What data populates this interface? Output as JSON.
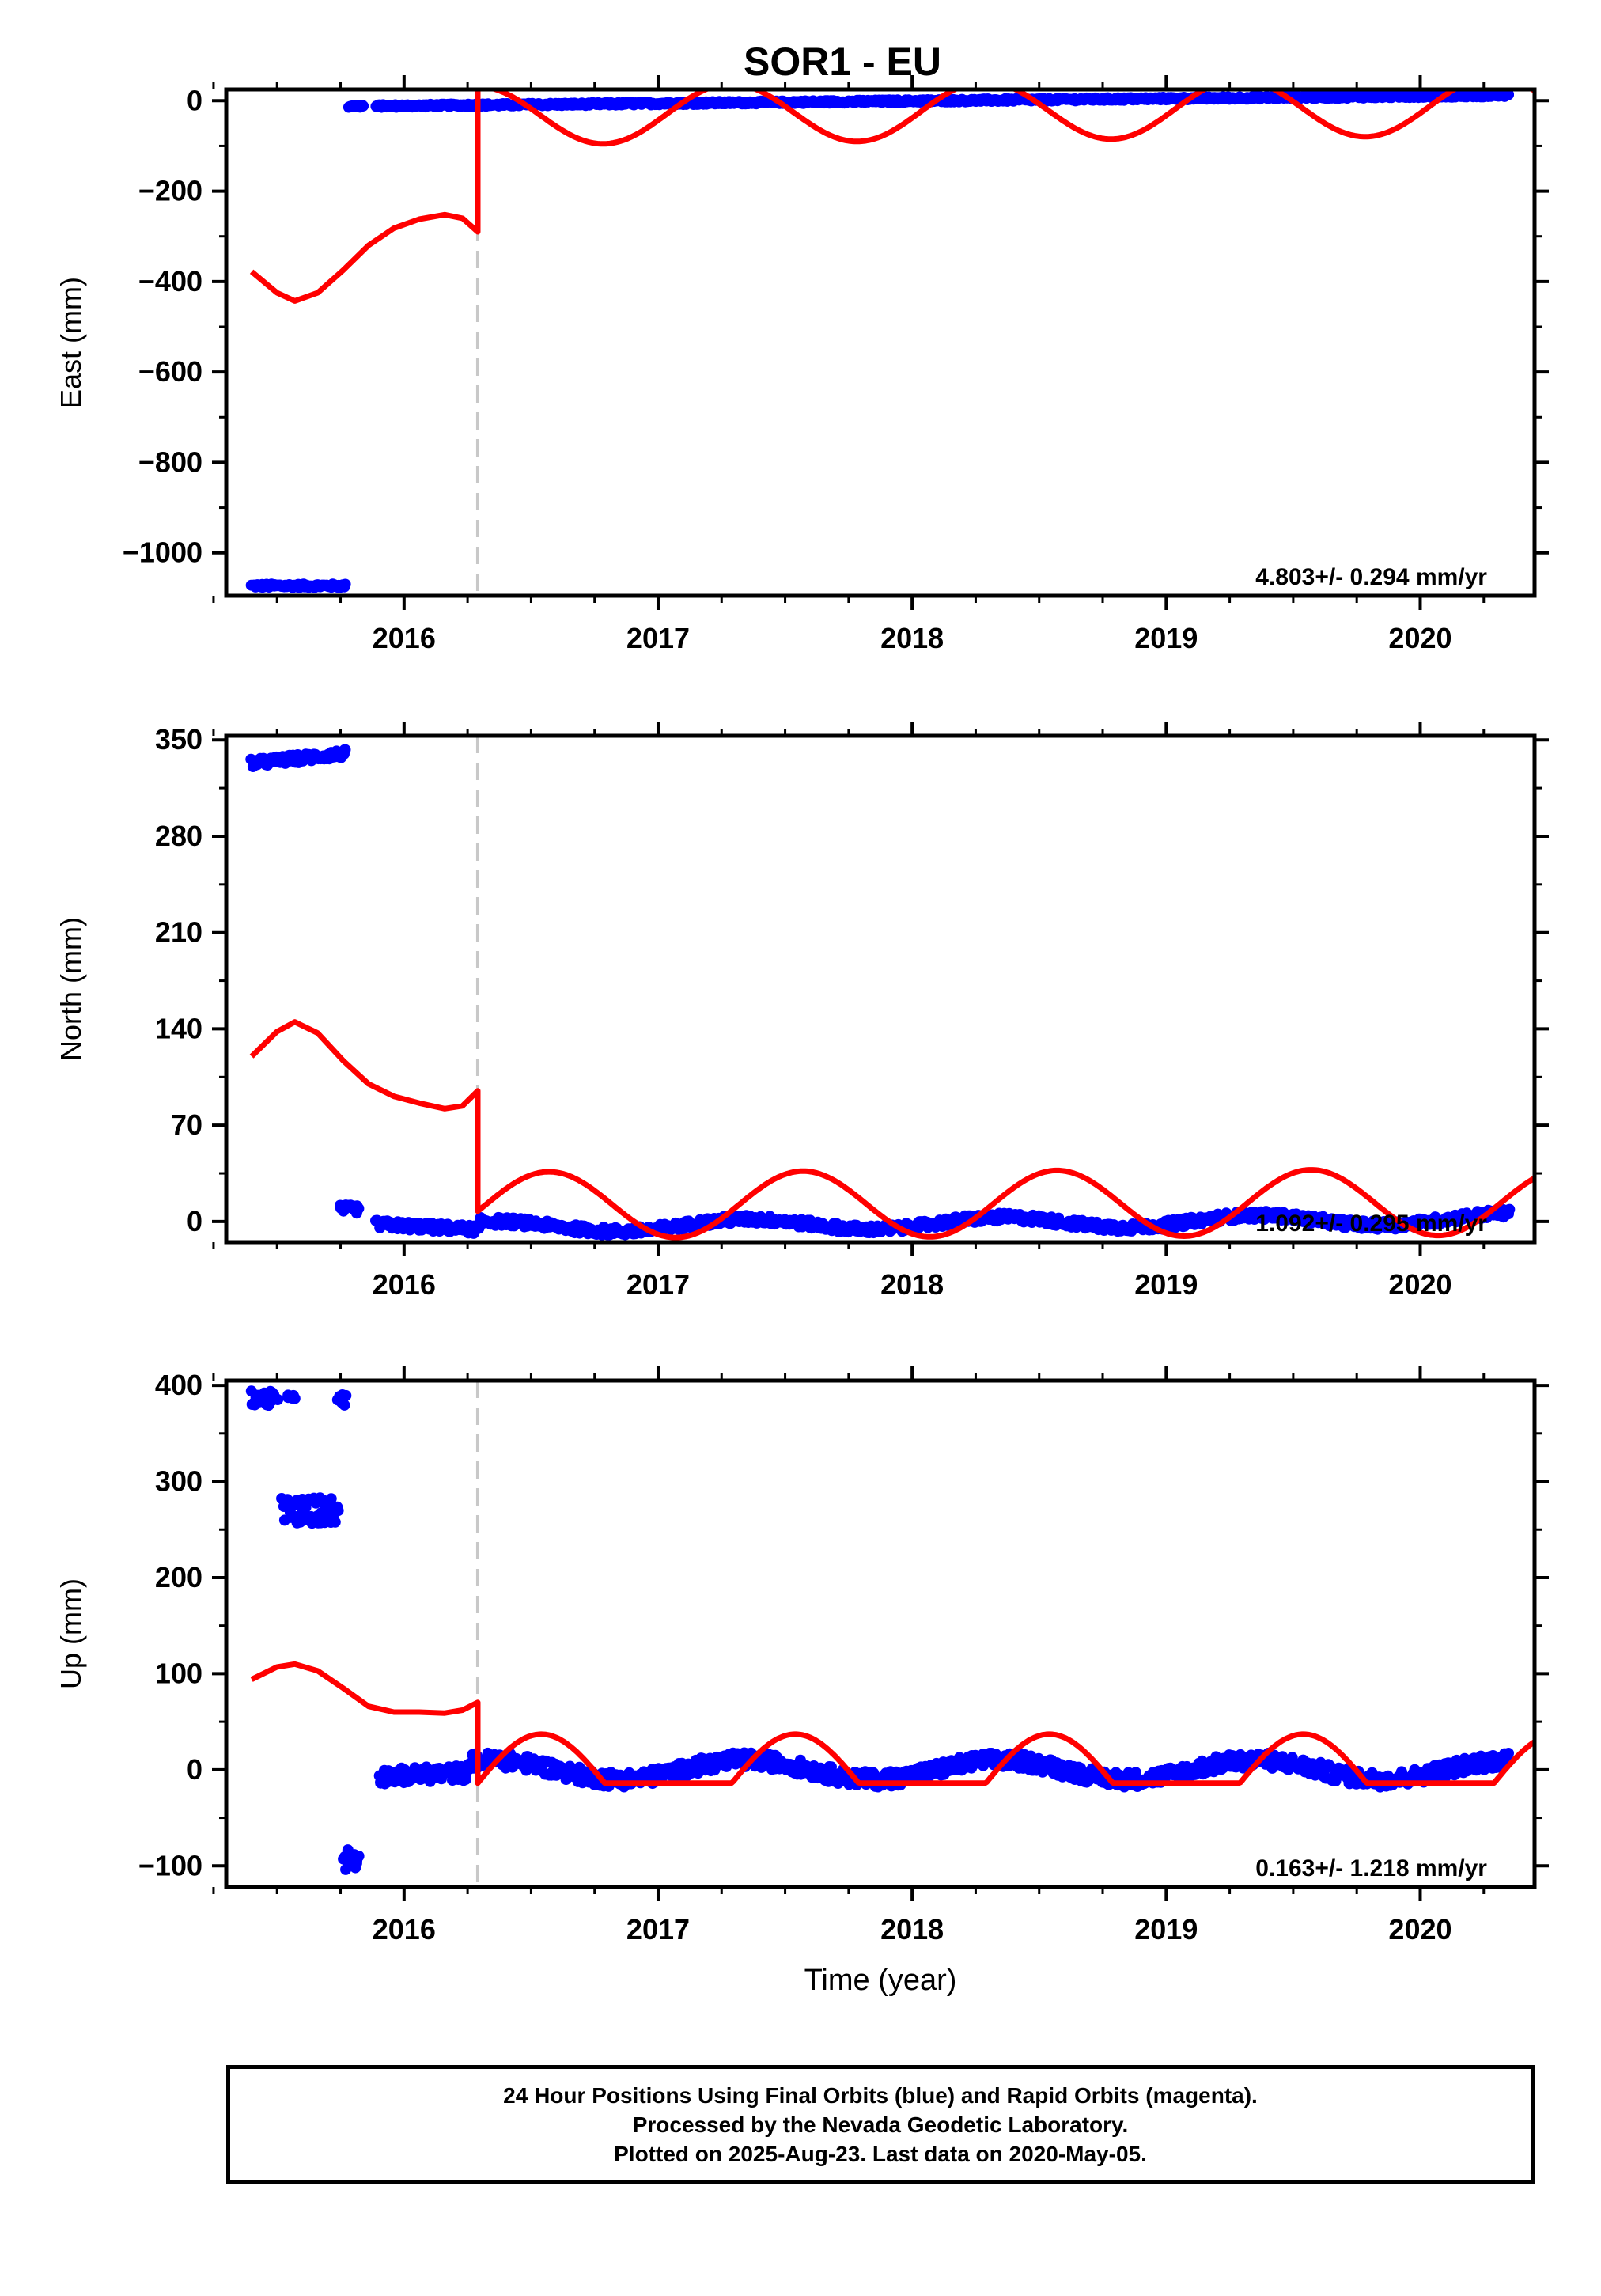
{
  "title": "SOR1 - EU",
  "colors": {
    "final_orbits": "#0000ff",
    "model": "#ff0000",
    "offset_line": "#c8c8c8",
    "axes": "#000000"
  },
  "footer": {
    "line1": "24 Hour Positions Using Final Orbits (blue) and Rapid Orbits (magenta).",
    "line2": "Processed by the Nevada Geodetic Laboratory.",
    "line3": "Plotted on 2025-Aug-23. Last data on 2020-May-05."
  },
  "chart_data": [
    {
      "type": "scatter",
      "ylabel": "East (mm)",
      "xlabel": "",
      "xlim": [
        2015.3,
        2020.45
      ],
      "ylim": [
        -1095,
        25
      ],
      "yticks": [
        0,
        -200,
        -400,
        -600,
        -800,
        -1000
      ],
      "ytick_labels": [
        "0",
        "−200",
        "−400",
        "−600",
        "−800",
        "−1000"
      ],
      "xticks": [
        2016,
        2017,
        2018,
        2019,
        2020
      ],
      "xtick_labels": [
        "2016",
        "2017",
        "2018",
        "2019",
        "2020"
      ],
      "offset_epoch": 2016.29,
      "annotation": "4.803+/- 0.294 mm/yr",
      "series": [
        {
          "segments": [
            {
              "x": [
                2015.4,
                2015.77
              ],
              "y": [
                -1073,
                -1073
              ],
              "spread": 4
            },
            {
              "x": [
                2015.78,
                2015.84
              ],
              "y": [
                -12,
                -12
              ],
              "spread": 3
            },
            {
              "x": [
                2015.89,
                2020.35
              ],
              "y": [
                -12,
                12
              ],
              "spread": 3
            }
          ]
        },
        {
          "model": true,
          "curve_x": [
            2015.4,
            2015.5,
            2015.57,
            2015.66,
            2015.76,
            2015.86,
            2015.96,
            2016.06,
            2016.16,
            2016.23,
            2016.29
          ],
          "curve_y": [
            -378,
            -425,
            -443,
            -425,
            -375,
            -320,
            -282,
            -262,
            -252,
            -260,
            -290
          ],
          "seasonal": {
            "x_start": 2016.29,
            "x_end": 2020.45,
            "base_start": 12,
            "base_end": 34,
            "amplitude": 130,
            "phase": 0.285
          }
        }
      ]
    },
    {
      "type": "scatter",
      "ylabel": "North (mm)",
      "xlabel": "",
      "xlim": [
        2015.3,
        2020.45
      ],
      "ylim": [
        -15,
        353
      ],
      "yticks": [
        0,
        70,
        140,
        210,
        280,
        350
      ],
      "ytick_labels": [
        "0",
        "70",
        "140",
        "210",
        "280",
        "350"
      ],
      "xticks": [
        2016,
        2017,
        2018,
        2019,
        2020
      ],
      "xtick_labels": [
        "2016",
        "2017",
        "2018",
        "2019",
        "2020"
      ],
      "offset_epoch": 2016.29,
      "annotation": "1.092+/- 0.295 mm/yr",
      "series": [
        {
          "segments": [
            {
              "x": [
                2015.4,
                2015.77
              ],
              "y": [
                333,
                340
              ],
              "spread": 3
            },
            {
              "x": [
                2015.75,
                2015.82
              ],
              "y": [
                9,
                9
              ],
              "spread": 3
            },
            {
              "x": [
                2015.89,
                2016.3
              ],
              "y": [
                -2,
                -6
              ],
              "spread": 3
            },
            {
              "x": [
                2016.3,
                2020.35
              ],
              "y": [
                -4,
                2
              ],
              "spread": 3,
              "wave": 4
            }
          ]
        },
        {
          "model": true,
          "curve_x": [
            2015.4,
            2015.5,
            2015.57,
            2015.66,
            2015.76,
            2015.86,
            2015.96,
            2016.06,
            2016.16,
            2016.23,
            2016.29
          ],
          "curve_y": [
            120,
            138,
            145,
            137,
            117,
            100,
            91,
            86,
            82,
            84,
            95
          ],
          "seasonal": {
            "x_start": 2016.29,
            "x_end": 2020.45,
            "base_start": -12,
            "base_end": -10,
            "amplitude": 48,
            "phase": 0.57
          }
        }
      ]
    },
    {
      "type": "scatter",
      "ylabel": "Up (mm)",
      "xlabel": "Time (year)",
      "xlim": [
        2015.3,
        2020.45
      ],
      "ylim": [
        -122,
        405
      ],
      "yticks": [
        -100,
        0,
        100,
        200,
        300,
        400
      ],
      "ytick_labels": [
        "−100",
        "0",
        "100",
        "200",
        "300",
        "400"
      ],
      "xticks": [
        2016,
        2017,
        2018,
        2019,
        2020
      ],
      "xtick_labels": [
        "2016",
        "2017",
        "2018",
        "2019",
        "2020"
      ],
      "offset_epoch": 2016.29,
      "annotation": "0.163+/- 1.218 mm/yr",
      "series": [
        {
          "segments": [
            {
              "x": [
                2015.4,
                2015.5
              ],
              "y": [
                388,
                385
              ],
              "spread": 8
            },
            {
              "x": [
                2015.54,
                2015.57
              ],
              "y": [
                388,
                388
              ],
              "spread": 2
            },
            {
              "x": [
                2015.74,
                2015.77
              ],
              "y": [
                385,
                385
              ],
              "spread": 6
            },
            {
              "x": [
                2015.52,
                2015.74
              ],
              "y": [
                270,
                270
              ],
              "spread": 14
            },
            {
              "x": [
                2015.76,
                2015.82
              ],
              "y": [
                -93,
                -93
              ],
              "spread": 12
            },
            {
              "x": [
                2015.9,
                2016.25
              ],
              "y": [
                -7,
                -3
              ],
              "spread": 8
            },
            {
              "x": [
                2016.25,
                2020.35
              ],
              "y": [
                0,
                0
              ],
              "spread": 8,
              "wave": 10
            }
          ]
        },
        {
          "model": true,
          "curve_x": [
            2015.4,
            2015.5,
            2015.57,
            2015.66,
            2015.76,
            2015.86,
            2015.96,
            2016.06,
            2016.16,
            2016.23,
            2016.29
          ],
          "curve_y": [
            94,
            107,
            110,
            103,
            85,
            66,
            60,
            60,
            59,
            62,
            70
          ],
          "seasonal": {
            "x_start": 2016.29,
            "x_end": 2020.45,
            "base_start": 0,
            "base_end": 0,
            "amplitude": 26,
            "phase": 0.28,
            "offset": 8
          }
        }
      ]
    }
  ]
}
